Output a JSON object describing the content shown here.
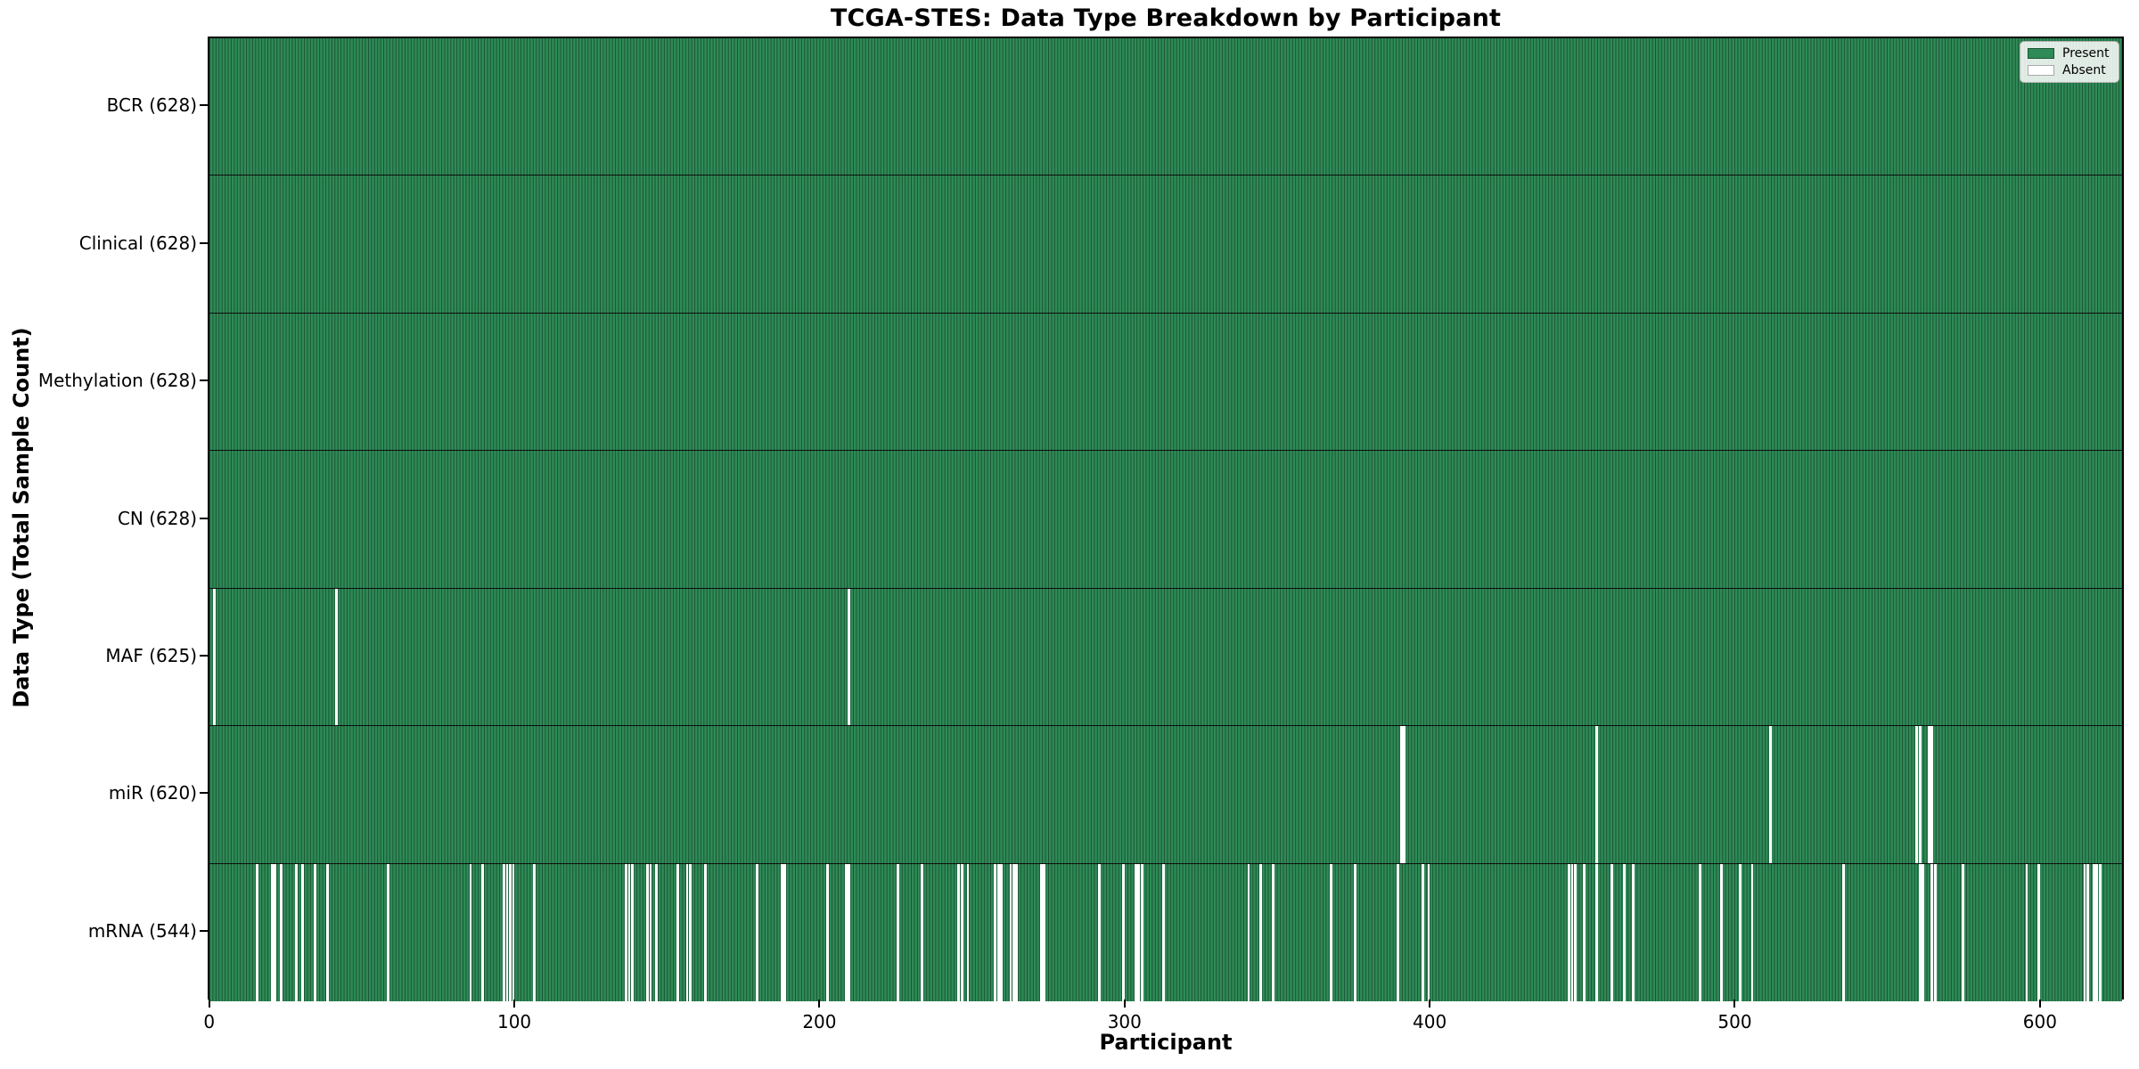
{
  "title": "TCGA-STES: Data Type Breakdown by Participant",
  "xlabel": "Participant",
  "ylabel": "Data Type (Total Sample Count)",
  "colors": {
    "present": "#2e8b57",
    "absent": "#ffffff",
    "bar_edge": "#1c5434",
    "spine": "#000000",
    "legend_border": "#b3b3b3"
  },
  "chart_data": {
    "type": "heatmap",
    "n_participants": 628,
    "x_ticks": [
      0,
      100,
      200,
      300,
      400,
      500,
      600
    ],
    "x_range": [
      0,
      627
    ],
    "grid": false,
    "legend_position": "upper right",
    "legend_entries": [
      {
        "label": "Present",
        "color": "#2e8b57"
      },
      {
        "label": "Absent",
        "color": "#ffffff"
      }
    ],
    "rows": [
      {
        "label": "BCR (628)",
        "data_type": "BCR",
        "present_count": 628,
        "absent_participants": []
      },
      {
        "label": "Clinical (628)",
        "data_type": "Clinical",
        "present_count": 628,
        "absent_participants": []
      },
      {
        "label": "Methylation (628)",
        "data_type": "Methylation",
        "present_count": 628,
        "absent_participants": []
      },
      {
        "label": "CN (628)",
        "data_type": "CN",
        "present_count": 628,
        "absent_participants": []
      },
      {
        "label": "MAF (625)",
        "data_type": "MAF",
        "present_count": 625,
        "absent_participants": [
          1,
          41,
          209
        ]
      },
      {
        "label": "miR (620)",
        "data_type": "miR",
        "present_count": 620,
        "absent_participants": [
          390,
          391,
          454,
          511,
          559,
          560,
          563,
          564
        ]
      },
      {
        "label": "mRNA (544)",
        "data_type": "mRNA",
        "present_count": 544,
        "absent_participants": [
          15,
          20,
          21,
          23,
          28,
          30,
          34,
          38,
          58,
          85,
          89,
          96,
          97,
          98,
          99,
          106,
          136,
          137,
          138,
          143,
          144,
          146,
          153,
          156,
          157,
          162,
          179,
          187,
          188,
          202,
          208,
          209,
          225,
          233,
          245,
          246,
          248,
          257,
          258,
          259,
          262,
          263,
          264,
          272,
          273,
          291,
          299,
          303,
          304,
          305,
          312,
          340,
          344,
          348,
          367,
          375,
          389,
          397,
          399,
          445,
          446,
          447,
          450,
          454,
          459,
          463,
          466,
          488,
          495,
          501,
          505,
          535,
          560,
          561,
          564,
          565,
          574,
          595,
          599,
          614,
          615,
          617,
          618,
          619
        ]
      }
    ]
  }
}
